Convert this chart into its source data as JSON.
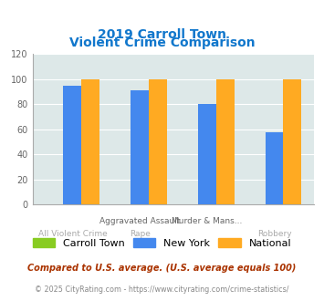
{
  "title_line1": "2019 Carroll Town",
  "title_line2": "Violent Crime Comparison",
  "cat_labels_top": [
    "",
    "Aggravated Assault",
    "Murder & Mans...",
    ""
  ],
  "cat_labels_bot": [
    "All Violent Crime",
    "Rape",
    "",
    "Robbery"
  ],
  "ny_vals": [
    95,
    91,
    80,
    58
  ],
  "nat_vals": [
    100,
    100,
    100,
    100
  ],
  "ct_vals": [
    0,
    0,
    0,
    0
  ],
  "colors": {
    "Carroll Town": "#88cc22",
    "New York": "#4488ee",
    "National": "#ffaa22"
  },
  "ylim": [
    0,
    120
  ],
  "yticks": [
    0,
    20,
    40,
    60,
    80,
    100,
    120
  ],
  "bg_color": "#dde8e8",
  "title_color": "#1177cc",
  "footnote1": "Compared to U.S. average. (U.S. average equals 100)",
  "footnote2": "© 2025 CityRating.com - https://www.cityrating.com/crime-statistics/",
  "footnote1_color": "#aa3300",
  "footnote2_color": "#888888"
}
